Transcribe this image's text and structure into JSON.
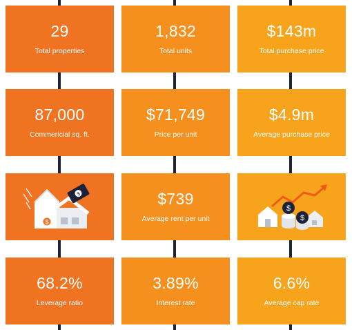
{
  "tiles": [
    {
      "value": "29",
      "label": "Total properties"
    },
    {
      "value": "1,832",
      "label": "Total units"
    },
    {
      "value": "$143m",
      "label": "Total purchase price"
    },
    {
      "value": "87,000",
      "label": "Commericial sq. ft."
    },
    {
      "value": "$71,749",
      "label": "Price per unit"
    },
    {
      "value": "$4.9m",
      "label": "Average purchase price"
    },
    {
      "value": "$739",
      "label": "Average rent per unit"
    },
    {
      "value": "68.2%",
      "label": "Leverage ratio"
    },
    {
      "value": "3.89%",
      "label": "Interest rate"
    },
    {
      "value": "6.6%",
      "label": "Average cap rate"
    }
  ],
  "icons": {
    "left": "house-with-money-icon",
    "right": "houses-coins-growth-icon"
  },
  "colors": {
    "col1": "#f07322",
    "col2": "#f5901e",
    "col3": "#f7a31c",
    "connector": "#1c2338"
  }
}
